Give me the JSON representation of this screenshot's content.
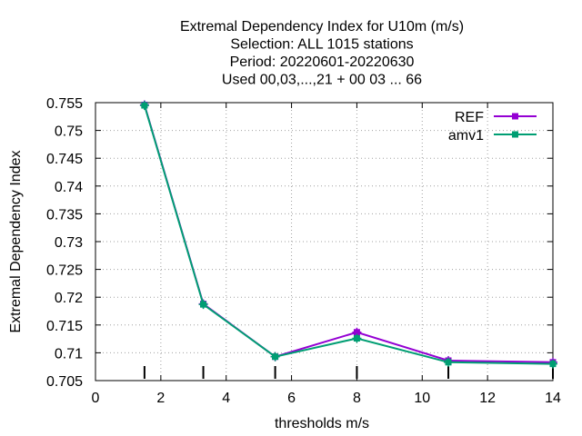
{
  "chart_data": {
    "type": "line",
    "title_lines": [
      "Extremal Dependency Index  for U10m (m/s)",
      "Selection: ALL    1015 stations",
      "Period: 20220601-20220630",
      "Used  00,03,...,21  + 00 03 ... 66"
    ],
    "xlabel": "thresholds m/s",
    "ylabel": "Extremal Dependency Index",
    "xlim": [
      0,
      14
    ],
    "ylim": [
      0.705,
      0.755
    ],
    "xticks": [
      0,
      2,
      4,
      6,
      8,
      10,
      12,
      14
    ],
    "yticks": [
      0.705,
      0.71,
      0.715,
      0.72,
      0.725,
      0.73,
      0.735,
      0.74,
      0.745,
      0.75,
      0.755
    ],
    "grid": true,
    "legend_position": "top-right",
    "threshold_marks": [
      1.5,
      3.3,
      5.5,
      8,
      10.8,
      14
    ],
    "series": [
      {
        "name": "REF",
        "color": "#9400d3",
        "x": [
          1.5,
          3.3,
          5.5,
          8,
          10.8,
          14
        ],
        "y": [
          0.7546,
          0.7188,
          0.7093,
          0.7137,
          0.7086,
          0.7083
        ]
      },
      {
        "name": "amv1",
        "color": "#009e73",
        "x": [
          1.5,
          3.3,
          5.5,
          8,
          10.8,
          14
        ],
        "y": [
          0.7545,
          0.7187,
          0.7093,
          0.7126,
          0.7083,
          0.708
        ]
      }
    ]
  }
}
